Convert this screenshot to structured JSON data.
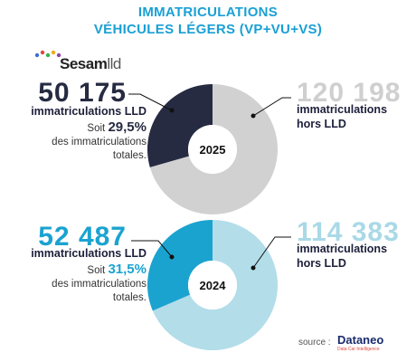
{
  "title_line1": "IMMATRICULATIONS",
  "title_line2": "VÉHICULES LÉGERS (VP+VU+VS)",
  "logo_text": "Sesam",
  "logo_suffix": "lld",
  "source_label": "source :",
  "source_name": "Dataneo",
  "source_tagline": "Data Car Intelligence",
  "colors": {
    "title": "#1aa0d4",
    "lld_2025": "#262b42",
    "hors_2025": "#d1d1d1",
    "lld_2024": "#1ba3d0",
    "hors_2024": "#b2dde9"
  },
  "chart_data": [
    {
      "type": "pie",
      "center_label": "2025",
      "slices": [
        {
          "value_text": "50 175",
          "label": "immatriculations LLD",
          "value": 50175
        },
        {
          "value_text": "120 198",
          "label_line1": "immatriculations",
          "label_line2": "hors LLD",
          "value": 120198
        }
      ],
      "note_prefix": "Soit",
      "note_pct": "29,5%",
      "note_line2": "des immatriculations",
      "note_line3": "totales."
    },
    {
      "type": "pie",
      "center_label": "2024",
      "slices": [
        {
          "value_text": "52 487",
          "label": "immatriculations LLD",
          "value": 52487
        },
        {
          "value_text": "114 383",
          "label_line1": "immatriculations",
          "label_line2": "hors LLD",
          "value": 114383
        }
      ],
      "note_prefix": "Soit",
      "note_pct": "31,5%",
      "note_line2": "des immatriculations",
      "note_line3": "totales."
    }
  ]
}
